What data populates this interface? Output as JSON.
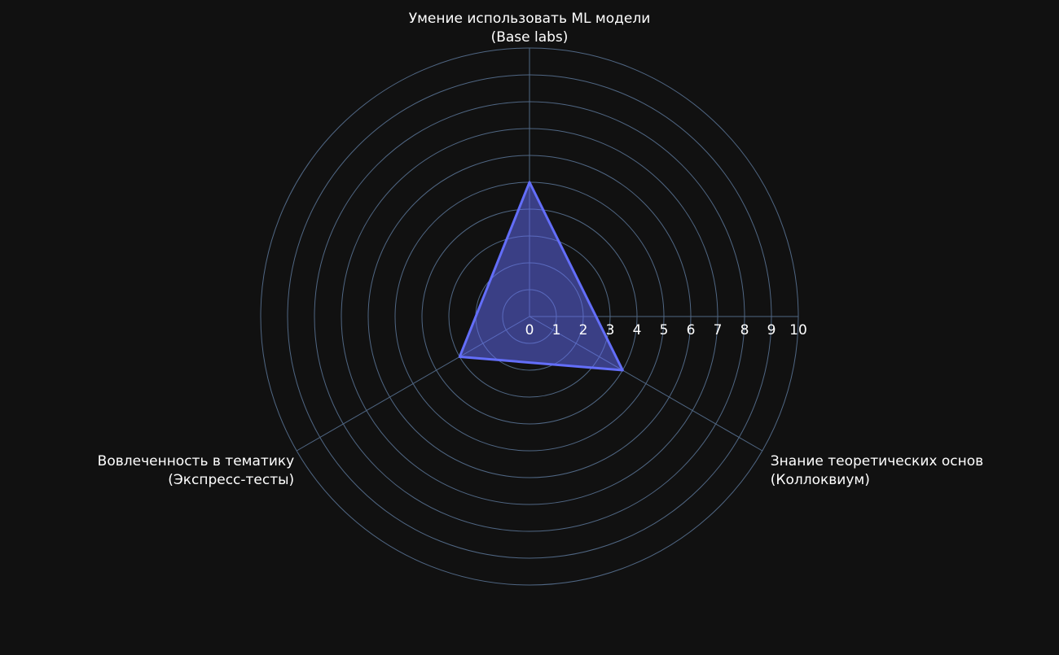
{
  "chart_data": {
    "type": "radar",
    "categories": [
      [
        "Умение использовать ML модели",
        "(Base labs)"
      ],
      [
        "Знание теоретических основ",
        "(Коллоквиум)"
      ],
      [
        "Вовлеченность в тематику",
        "(Экспресс-тесты)"
      ]
    ],
    "values": [
      5,
      4,
      3
    ],
    "radial_range": [
      0,
      10
    ],
    "radial_ticks": [
      "0",
      "1",
      "2",
      "3",
      "4",
      "5",
      "6",
      "7",
      "8",
      "9",
      "10"
    ],
    "grid": true,
    "legend": "none",
    "colors": {
      "background": "#111111",
      "grid": "#506784",
      "series_line": "#636efa",
      "series_fill": "rgba(99,110,250,0.5)",
      "text": "#ffffff"
    }
  }
}
